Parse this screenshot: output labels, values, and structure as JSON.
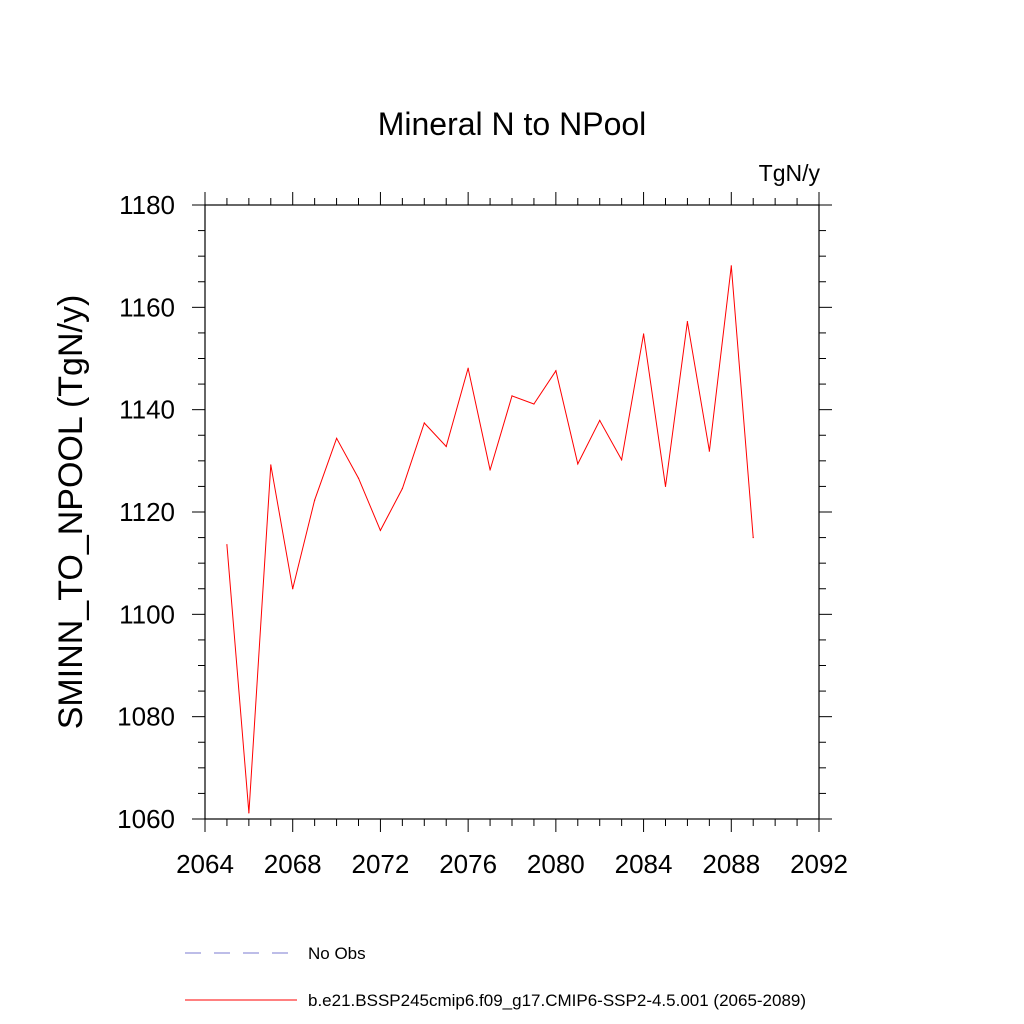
{
  "chart_data": {
    "type": "line",
    "title": "Mineral N to NPool",
    "units_label": "TgN/y",
    "ylabel": "SMINN_TO_NPOOL  (TgN/y)",
    "xlabel": "",
    "xlim": [
      2064,
      2092
    ],
    "ylim": [
      1060,
      1180
    ],
    "x_ticks": [
      "2064",
      "2068",
      "2072",
      "2076",
      "2080",
      "2084",
      "2088",
      "2092"
    ],
    "y_ticks": [
      "1060",
      "1080",
      "1100",
      "1120",
      "1140",
      "1160",
      "1180"
    ],
    "grid": false,
    "legend_position": "bottom",
    "series": [
      {
        "name": "b.e21.BSSP245cmip6.f09_g17.CMIP6-SSP2-4.5.001 (2065-2089)",
        "color": "#ff0000",
        "style": "solid",
        "x": [
          2065,
          2066,
          2067,
          2068,
          2069,
          2070,
          2071,
          2072,
          2073,
          2074,
          2075,
          2076,
          2077,
          2078,
          2079,
          2080,
          2081,
          2082,
          2083,
          2084,
          2085,
          2086,
          2087,
          2088,
          2089
        ],
        "y": [
          1113.6,
          1061.2,
          1129.2,
          1105.0,
          1122.3,
          1134.4,
          1126.6,
          1116.4,
          1124.6,
          1137.4,
          1132.8,
          1148.1,
          1128.2,
          1142.7,
          1141.1,
          1147.6,
          1129.4,
          1137.9,
          1130.2,
          1154.8,
          1125.0,
          1157.2,
          1131.9,
          1168.1,
          1115.0
        ]
      }
    ],
    "legend": [
      {
        "label": "No Obs",
        "color": "#7b7bd1",
        "style": "dashed"
      },
      {
        "label": "b.e21.BSSP245cmip6.f09_g17.CMIP6-SSP2-4.5.001 (2065-2089)",
        "color": "#ff0000",
        "style": "solid"
      }
    ]
  }
}
